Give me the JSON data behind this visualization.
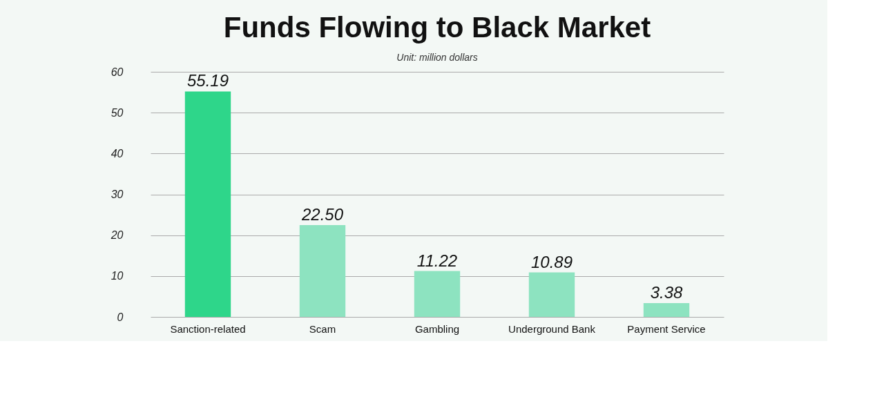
{
  "chart_data": {
    "type": "bar",
    "title": "Funds Flowing to Black Market",
    "annotations": [
      "Unit: million dollars"
    ],
    "categories": [
      "Sanction-related",
      "Scam",
      "Gambling",
      "Underground Bank",
      "Payment Service"
    ],
    "values": [
      55.19,
      22.5,
      11.22,
      10.89,
      3.38
    ],
    "colors": [
      "#2ed68a",
      "#8de3c0",
      "#8de3c0",
      "#8de3c0",
      "#8de3c0"
    ],
    "value_labels": [
      "55.19",
      "22.50",
      "11.22",
      "10.89",
      "3.38"
    ],
    "ylim": [
      0,
      60
    ],
    "yticks": [
      0,
      10,
      20,
      30,
      40,
      50,
      60
    ],
    "grid": "y"
  }
}
